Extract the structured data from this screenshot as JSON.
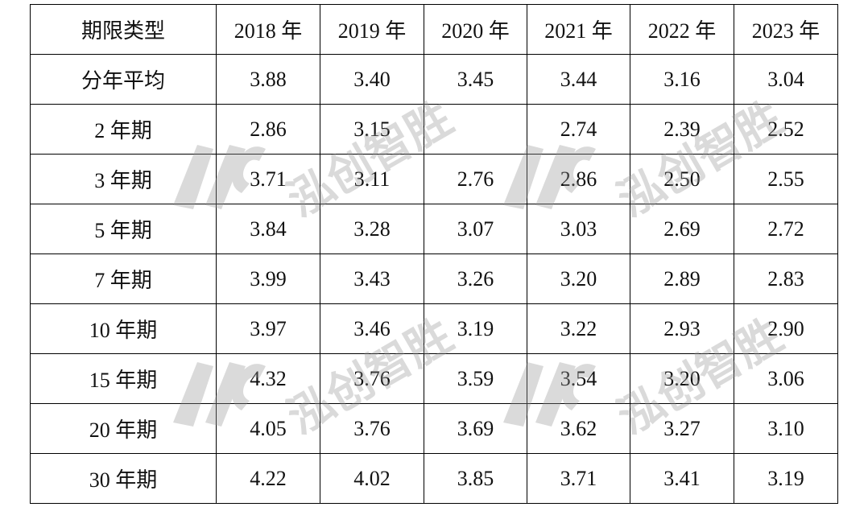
{
  "table": {
    "header": [
      "期限类型",
      "2018 年",
      "2019 年",
      "2020 年",
      "2021 年",
      "2022 年",
      "2023 年"
    ],
    "rows": [
      [
        "分年平均",
        "3.88",
        "3.40",
        "3.45",
        "3.44",
        "3.16",
        "3.04"
      ],
      [
        "2 年期",
        "2.86",
        "3.15",
        null,
        "2.74",
        "2.39",
        "2.52"
      ],
      [
        "3 年期",
        "3.71",
        "3.11",
        "2.76",
        "2.86",
        "2.50",
        "2.55"
      ],
      [
        "5 年期",
        "3.84",
        "3.28",
        "3.07",
        "3.03",
        "2.69",
        "2.72"
      ],
      [
        "7 年期",
        "3.99",
        "3.43",
        "3.26",
        "3.20",
        "2.89",
        "2.83"
      ],
      [
        "10 年期",
        "3.97",
        "3.46",
        "3.19",
        "3.22",
        "2.93",
        "2.90"
      ],
      [
        "15 年期",
        "4.32",
        "3.76",
        "3.59",
        "3.54",
        "3.20",
        "3.06"
      ],
      [
        "20 年期",
        "4.05",
        "3.76",
        "3.69",
        "3.62",
        "3.27",
        "3.10"
      ],
      [
        "30 年期",
        "4.22",
        "4.02",
        "3.85",
        "3.71",
        "3.41",
        "3.19"
      ]
    ]
  },
  "watermark": "泓创智胜"
}
